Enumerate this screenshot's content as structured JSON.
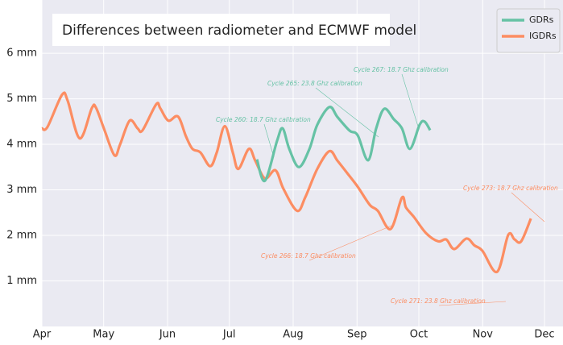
{
  "chart_data": {
    "type": "line",
    "title": "Differences between radiometer and ECMWF model",
    "xlim": [
      0,
      253
    ],
    "xticks": [
      {
        "value": 0,
        "label": "Apr"
      },
      {
        "value": 30,
        "label": "May"
      },
      {
        "value": 61,
        "label": "Jun"
      },
      {
        "value": 91,
        "label": "Jul"
      },
      {
        "value": 122,
        "label": "Aug"
      },
      {
        "value": 153,
        "label": "Sep"
      },
      {
        "value": 183,
        "label": "Oct"
      },
      {
        "value": 214,
        "label": "Nov"
      },
      {
        "value": 244,
        "label": "Dec"
      }
    ],
    "ylim": [
      0,
      7.17
    ],
    "yticks": [
      {
        "value": 1,
        "label": "1 mm"
      },
      {
        "value": 2,
        "label": "2 mm"
      },
      {
        "value": 3,
        "label": "3 mm"
      },
      {
        "value": 4,
        "label": "4 mm"
      },
      {
        "value": 5,
        "label": "5 mm"
      },
      {
        "value": 6,
        "label": "6 mm"
      }
    ],
    "grid": true,
    "legend": "upper right",
    "series": [
      {
        "name": "GDRs",
        "color": "#66c2a5",
        "x": [
          104.4,
          108.3,
          114.2,
          116.9,
          120.1,
          124.8,
          129.9,
          133.7,
          139.6,
          143.5,
          149.4,
          153.3,
          158.4,
          162.3,
          166.2,
          170.9,
          174.8,
          178.7,
          183.4,
          185.8,
          188.5
        ],
        "values": [
          3.67,
          3.2,
          4.08,
          4.35,
          3.9,
          3.5,
          3.9,
          4.43,
          4.82,
          4.6,
          4.3,
          4.2,
          3.65,
          4.35,
          4.78,
          4.55,
          4.35,
          3.9,
          4.43,
          4.5,
          4.31
        ]
      },
      {
        "name": "IGDRs",
        "color": "#fc8d62",
        "x": [
          0,
          2.7,
          9.8,
          12.5,
          18.4,
          24.2,
          26.2,
          30.1,
          35.2,
          37.9,
          42.6,
          46.5,
          48.9,
          55.5,
          57.5,
          61.4,
          66.1,
          70,
          73.1,
          77,
          81.7,
          84.9,
          88.8,
          92.7,
          95.4,
          100.5,
          103.6,
          108.3,
          113.4,
          117.3,
          123.9,
          127.9,
          133.7,
          139.6,
          143.5,
          148.2,
          153.3,
          159.2,
          163.1,
          169.3,
          174.8,
          176.8,
          180.7,
          186.5,
          192.4,
          196.3,
          200.2,
          206.1,
          210,
          213.9,
          221,
          226.4,
          229.5,
          232.7,
          237.4
        ],
        "values": [
          4.35,
          4.38,
          5.09,
          4.96,
          4.13,
          4.79,
          4.81,
          4.35,
          3.76,
          3.99,
          4.52,
          4.35,
          4.31,
          4.88,
          4.79,
          4.52,
          4.61,
          4.17,
          3.9,
          3.82,
          3.52,
          3.82,
          4.4,
          3.82,
          3.46,
          3.9,
          3.64,
          3.25,
          3.43,
          3.02,
          2.54,
          2.84,
          3.46,
          3.85,
          3.64,
          3.37,
          3.07,
          2.67,
          2.54,
          2.14,
          2.83,
          2.61,
          2.4,
          2.05,
          1.87,
          1.91,
          1.7,
          1.93,
          1.78,
          1.66,
          1.2,
          2.01,
          1.91,
          1.87,
          2.37
        ]
      }
    ],
    "annotations": [
      {
        "text": "Cycle 260: 18.7 Ghz calibration",
        "color": "#66c2a5"
      },
      {
        "text": "Cycle 265: 23.8 Ghz calibration",
        "color": "#66c2a5"
      },
      {
        "text": "Cycle 267: 18.7 Ghz calibration",
        "color": "#66c2a5"
      },
      {
        "text": "Cycle 266: 18.7 Ghz calibration",
        "color": "#fc8d62"
      },
      {
        "text": "Cycle 271: 23.8 Ghz calibration",
        "color": "#fc8d62"
      },
      {
        "text": "Cycle 273: 18.7 Ghz calibration",
        "color": "#fc8d62"
      }
    ]
  }
}
